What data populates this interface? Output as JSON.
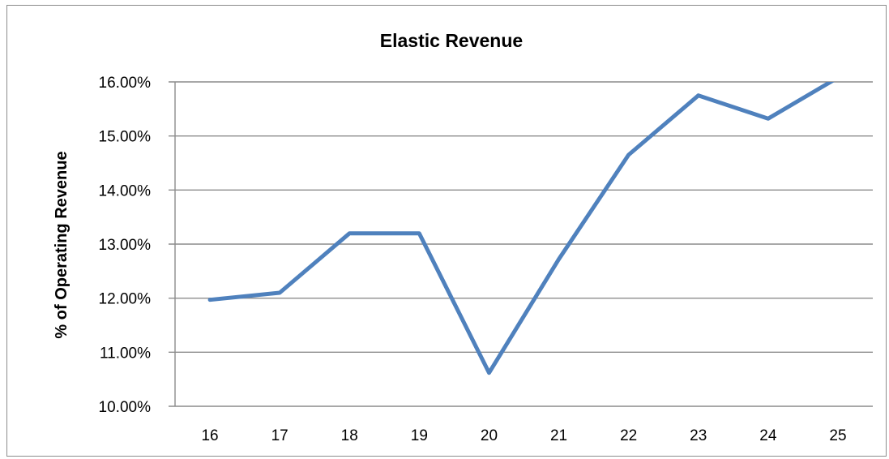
{
  "chart_data": {
    "type": "line",
    "title": "Elastic Revenue",
    "xlabel": "",
    "ylabel": "% of Operating Revenue",
    "categories": [
      "16",
      "17",
      "18",
      "19",
      "20",
      "21",
      "22",
      "23",
      "24",
      "25"
    ],
    "series": [
      {
        "values": [
          11.97,
          12.1,
          13.2,
          13.2,
          10.62,
          12.72,
          14.65,
          15.75,
          15.32,
          16.08
        ],
        "color": "#4f81bd"
      }
    ],
    "ylim": [
      10,
      16
    ],
    "yticks": [
      10,
      11,
      12,
      13,
      14,
      15,
      16
    ],
    "ytick_labels": [
      "10.00%",
      "11.00%",
      "12.00%",
      "13.00%",
      "14.00%",
      "15.00%",
      "16.00%"
    ],
    "grid": true,
    "legend": "none"
  }
}
